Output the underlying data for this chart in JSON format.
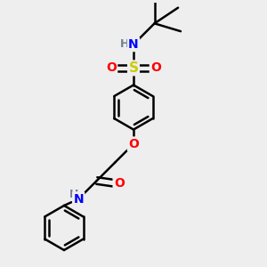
{
  "background_color": "#eeeeee",
  "atom_colors": {
    "C": "#000000",
    "H": "#708090",
    "N": "#0000ff",
    "O": "#ff0000",
    "S": "#cccc00"
  },
  "bond_color": "#000000",
  "bond_width": 1.8,
  "figsize": [
    3.0,
    3.0
  ],
  "dpi": 100
}
